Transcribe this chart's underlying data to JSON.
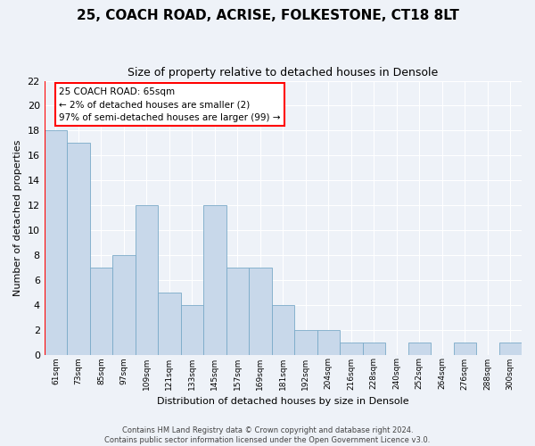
{
  "title": "25, COACH ROAD, ACRISE, FOLKESTONE, CT18 8LT",
  "subtitle": "Size of property relative to detached houses in Densole",
  "xlabel": "Distribution of detached houses by size in Densole",
  "ylabel": "Number of detached properties",
  "bins": [
    "61sqm",
    "73sqm",
    "85sqm",
    "97sqm",
    "109sqm",
    "121sqm",
    "133sqm",
    "145sqm",
    "157sqm",
    "169sqm",
    "181sqm",
    "192sqm",
    "204sqm",
    "216sqm",
    "228sqm",
    "240sqm",
    "252sqm",
    "264sqm",
    "276sqm",
    "288sqm",
    "300sqm"
  ],
  "values": [
    18,
    17,
    7,
    8,
    12,
    5,
    4,
    12,
    7,
    7,
    4,
    2,
    2,
    1,
    1,
    0,
    1,
    0,
    1,
    0,
    1
  ],
  "bar_color": "#c8d8ea",
  "bar_edge_color": "#7aaac8",
  "annotation_box_text": "25 COACH ROAD: 65sqm\n← 2% of detached houses are smaller (2)\n97% of semi-detached houses are larger (99) →",
  "annotation_box_facecolor": "white",
  "annotation_box_edgecolor": "red",
  "highlight_bar_index": 0,
  "ylim": [
    0,
    22
  ],
  "yticks": [
    0,
    2,
    4,
    6,
    8,
    10,
    12,
    14,
    16,
    18,
    20,
    22
  ],
  "fig_bg_color": "#eef2f8",
  "plot_bg_color": "#eef2f8",
  "grid_color": "white",
  "footer_line1": "Contains HM Land Registry data © Crown copyright and database right 2024.",
  "footer_line2": "Contains public sector information licensed under the Open Government Licence v3.0."
}
